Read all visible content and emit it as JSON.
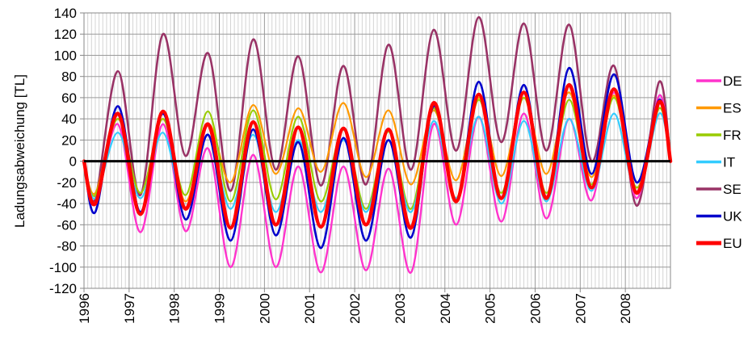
{
  "chart_data": {
    "type": "line",
    "title": "",
    "xlabel": "",
    "ylabel": "Ladungsabweichung [TL]",
    "ylim": [
      -120,
      140
    ],
    "yticks": [
      -120,
      -100,
      -80,
      -60,
      -40,
      -20,
      0,
      20,
      40,
      60,
      80,
      100,
      120,
      140
    ],
    "xlim": [
      1996,
      2009
    ],
    "xticks": [
      "1996",
      "1997",
      "1998",
      "1999",
      "2000",
      "2001",
      "2002",
      "2003",
      "2004",
      "2005",
      "2006",
      "2007",
      "2008"
    ],
    "grid": true,
    "legend_position": "right",
    "zero_line_color": "#000000",
    "colors": {
      "DE": "#ff33cc",
      "ES": "#ff9900",
      "FR": "#99cc00",
      "IT": "#33ccff",
      "SE": "#993366",
      "UK": "#0000cc",
      "EU": "#ff0000"
    },
    "x": [
      1996.0,
      1996.25,
      1996.75,
      1997.25,
      1997.75,
      1998.25,
      1998.75,
      1999.25,
      1999.75,
      2000.25,
      2000.75,
      2001.25,
      2001.75,
      2002.25,
      2002.75,
      2003.25,
      2003.75,
      2004.25,
      2004.75,
      2005.25,
      2005.75,
      2006.25,
      2006.75,
      2007.25,
      2007.75,
      2008.25,
      2008.75,
      2009.0
    ],
    "series": [
      {
        "name": "DE",
        "values": [
          0,
          -40,
          35,
          -67,
          35,
          -66,
          12,
          -100,
          6,
          -100,
          -5,
          -105,
          -5,
          -103,
          -7,
          -105,
          35,
          -60,
          42,
          -57,
          45,
          -54,
          40,
          -37,
          65,
          -35,
          62,
          0
        ]
      },
      {
        "name": "ES",
        "values": [
          0,
          -30,
          40,
          -30,
          40,
          -38,
          35,
          -20,
          53,
          -12,
          50,
          -10,
          55,
          -15,
          48,
          -22,
          48,
          -18,
          60,
          -14,
          60,
          -12,
          65,
          -15,
          62,
          -25,
          55,
          0
        ]
      },
      {
        "name": "FR",
        "values": [
          0,
          -32,
          40,
          -30,
          40,
          -32,
          47,
          -38,
          48,
          -36,
          42,
          -38,
          30,
          -45,
          28,
          -45,
          50,
          -35,
          58,
          -30,
          60,
          -30,
          58,
          -22,
          60,
          -25,
          50,
          0
        ]
      },
      {
        "name": "IT",
        "values": [
          0,
          -35,
          27,
          -35,
          27,
          -45,
          25,
          -45,
          25,
          -48,
          20,
          -48,
          20,
          -48,
          20,
          -48,
          38,
          -35,
          42,
          -40,
          38,
          -38,
          40,
          -28,
          45,
          -30,
          45,
          0
        ]
      },
      {
        "name": "SE",
        "values": [
          0,
          -35,
          85,
          -32,
          120,
          5,
          102,
          -28,
          115,
          -8,
          99,
          -23,
          90,
          -22,
          110,
          -8,
          124,
          10,
          136,
          18,
          130,
          10,
          129,
          0,
          90,
          -42,
          75,
          0
        ]
      },
      {
        "name": "UK",
        "values": [
          0,
          -48,
          52,
          -48,
          45,
          -55,
          25,
          -75,
          30,
          -70,
          18,
          -82,
          22,
          -75,
          20,
          -72,
          52,
          -38,
          75,
          -35,
          72,
          -35,
          88,
          -12,
          82,
          -20,
          58,
          0
        ]
      },
      {
        "name": "EU",
        "values": [
          0,
          -40,
          45,
          -50,
          47,
          -45,
          35,
          -63,
          37,
          -60,
          32,
          -62,
          31,
          -60,
          30,
          -63,
          55,
          -38,
          63,
          -35,
          65,
          -35,
          72,
          -25,
          68,
          -30,
          56,
          0
        ]
      }
    ]
  }
}
